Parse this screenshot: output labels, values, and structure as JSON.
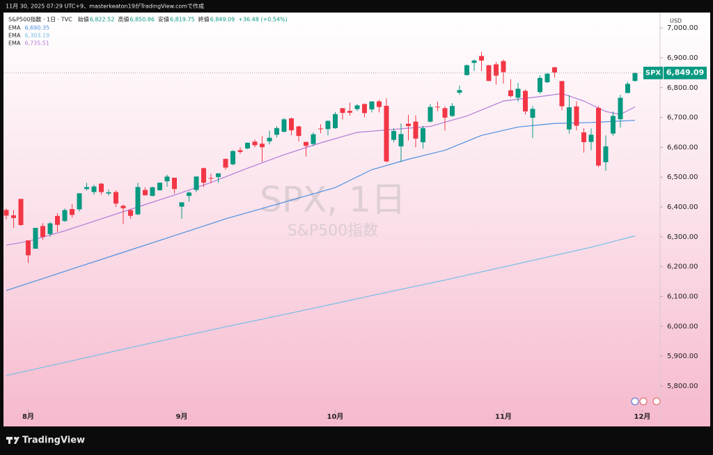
{
  "chart_data": {
    "type": "candlestick",
    "caption": "11月 30, 2025 07:29 UTC+9、masterkeaton19がTradingView.comで作成",
    "title": "S&P500指数 · 1日 · TVC",
    "ohlc_labels": [
      {
        "label": "始値",
        "value": "6,822.52"
      },
      {
        "label": "高値",
        "value": "6,850.86"
      },
      {
        "label": "安値",
        "value": "6,819.75"
      },
      {
        "label": "終値",
        "value": "6,849.09"
      }
    ],
    "change": "+36.48 (+0.54%)",
    "currency": "USD",
    "watermark": {
      "symbol": "SPX, 1日",
      "name": "S&P500指数"
    },
    "brand": "TradingView",
    "xlim": [
      -0.38,
      89.43
    ],
    "xticks": [
      {
        "value": 3,
        "label": "8月"
      },
      {
        "value": 24,
        "label": "9月"
      },
      {
        "value": 45,
        "label": "10月"
      },
      {
        "value": 68,
        "label": "11月"
      },
      {
        "value": 87,
        "label": "12月"
      }
    ],
    "ylim": [
      5669,
      7047
    ],
    "yticks": [
      {
        "value": 5800,
        "label": "5,800.00"
      },
      {
        "value": 5900,
        "label": "5,900.00"
      },
      {
        "value": 6000,
        "label": "6,000.00"
      },
      {
        "value": 6100,
        "label": "6,100.00"
      },
      {
        "value": 6200,
        "label": "6,200.00"
      },
      {
        "value": 6300,
        "label": "6,300.00"
      },
      {
        "value": 6400,
        "label": "6,400.00"
      },
      {
        "value": 6500,
        "label": "6,500.00"
      },
      {
        "value": 6600,
        "label": "6,600.00"
      },
      {
        "value": 6700,
        "label": "6,700.00"
      },
      {
        "value": 6800,
        "label": "6,800.00"
      },
      {
        "value": 6900,
        "label": "6,900.00"
      },
      {
        "value": 7000,
        "label": "7,000.00"
      }
    ],
    "series": [
      {
        "name": "SPX",
        "type": "candlestick",
        "up_color": "#089981",
        "down_color": "#f23645",
        "last_label": "6,849.09",
        "open": [
          6390,
          6372,
          6427,
          6288,
          6260,
          6336,
          6309,
          6370,
          6353,
          6393,
          6392,
          6460,
          6450,
          6478,
          6445,
          6450,
          6404,
          6389,
          6375,
          6457,
          6437,
          6456,
          6486,
          6498,
          6401,
          6437,
          6457,
          6530,
          6497,
          6500,
          6561,
          6543,
          6590,
          6596,
          6619,
          6612,
          6620,
          6642,
          6652,
          6697,
          6670,
          6618,
          6611,
          6663,
          6661,
          6664,
          6731,
          6722,
          6728,
          6745,
          6727,
          6754,
          6739,
          6625,
          6603,
          6679,
          6686,
          6617,
          6686,
          6736,
          6731,
          6705,
          6783,
          6842,
          6883,
          6906,
          6875,
          6878,
          6889,
          6791,
          6766,
          6789,
          6699,
          6785,
          6818,
          6868,
          6822,
          6660,
          6737,
          6650,
          6618,
          6732,
          6550,
          6646,
          6694,
          6782,
          6822.52
        ],
        "high": [
          6395,
          6390,
          6427,
          6288,
          6330,
          6346,
          6350,
          6379,
          6395,
          6410,
          6446,
          6481,
          6474,
          6481,
          6458,
          6456,
          6408,
          6393,
          6481,
          6466,
          6468,
          6482,
          6508,
          6498,
          6416,
          6452,
          6502,
          6532,
          6511,
          6513,
          6563,
          6590,
          6600,
          6616,
          6626,
          6638,
          6656,
          6671,
          6698,
          6699,
          6672,
          6618,
          6650,
          6677,
          6690,
          6718,
          6731,
          6750,
          6745,
          6747,
          6754,
          6759,
          6764,
          6664,
          6680,
          6709,
          6707,
          6672,
          6745,
          6753,
          6738,
          6748,
          6807,
          6877,
          6895,
          6920,
          6876,
          6886,
          6894,
          6828,
          6816,
          6794,
          6738,
          6841,
          6850,
          6870,
          6822,
          6775,
          6754,
          6664,
          6663,
          6738,
          6640,
          6720,
          6776,
          6819,
          6850.86
        ],
        "low": [
          6358,
          6330,
          6337,
          6212,
          6260,
          6289,
          6300,
          6316,
          6350,
          6364,
          6385,
          6455,
          6441,
          6441,
          6438,
          6400,
          6343,
          6360,
          6373,
          6438,
          6436,
          6455,
          6468,
          6445,
          6360,
          6418,
          6450,
          6467,
          6480,
          6481,
          6525,
          6540,
          6578,
          6594,
          6600,
          6551,
          6610,
          6633,
          6650,
          6641,
          6620,
          6569,
          6604,
          6647,
          6640,
          6662,
          6693,
          6706,
          6721,
          6700,
          6717,
          6717,
          6550,
          6617,
          6551,
          6623,
          6600,
          6596,
          6683,
          6721,
          6656,
          6702,
          6776,
          6841,
          6856,
          6855,
          6822,
          6810,
          6813,
          6767,
          6753,
          6710,
          6631,
          6779,
          6815,
          6834,
          6724,
          6646,
          6657,
          6582,
          6590,
          6533,
          6521,
          6638,
          6666,
          6781,
          6819.75
        ],
        "close": [
          6370.86,
          6362.9,
          6339.39,
          6238.01,
          6329.94,
          6299.19,
          6345.06,
          6340.0,
          6389.45,
          6373.45,
          6445.76,
          6466.58,
          6468.54,
          6449.8,
          6449.15,
          6411.37,
          6395.78,
          6370.17,
          6466.91,
          6439.32,
          6465.94,
          6481.4,
          6501.86,
          6460.26,
          6415.54,
          6448.26,
          6502.08,
          6481.5,
          6495.15,
          6512.61,
          6532.04,
          6587.47,
          6584.29,
          6615.28,
          6606.76,
          6600.35,
          6631.96,
          6664.36,
          6693.75,
          6656.92,
          6637.97,
          6604.72,
          6643.7,
          6661.21,
          6688.46,
          6711.2,
          6715.35,
          6715.79,
          6740.28,
          6714.59,
          6753.72,
          6735.11,
          6552.51,
          6654.72,
          6644.31,
          6671.06,
          6629.07,
          6664.01,
          6735.13,
          6735.35,
          6699.4,
          6738.44,
          6791.69,
          6875.16,
          6890.89,
          6890.59,
          6822.34,
          6840.2,
          6851.97,
          6771.55,
          6796.29,
          6720.32,
          6728.8,
          6832.43,
          6846.61,
          6850.92,
          6737.49,
          6734.11,
          6672.41,
          6617.32,
          6642.16,
          6538.76,
          6602.99,
          6705.12,
          6765.88,
          6812.61,
          6849.09
        ]
      },
      {
        "name": "EMA",
        "type": "line",
        "color": "#4a8fe0",
        "last_label": "6,690.35",
        "x": [
          0,
          5,
          10,
          15,
          20,
          25,
          30,
          35,
          40,
          45,
          50,
          55,
          60,
          65,
          70,
          75,
          80,
          86
        ],
        "values": [
          6120,
          6160,
          6200,
          6240,
          6280,
          6320,
          6360,
          6395,
          6430,
          6465,
          6525,
          6560,
          6590,
          6640,
          6668,
          6680,
          6683,
          6690.35
        ]
      },
      {
        "name": "EMA",
        "type": "line",
        "color": "#74bde6",
        "last_label": "6,303.19",
        "x": [
          0,
          10,
          20,
          30,
          40,
          50,
          60,
          70,
          80,
          86
        ],
        "values": [
          5835,
          5890,
          5945,
          5998,
          6050,
          6103,
          6155,
          6210,
          6265,
          6303.19
        ]
      },
      {
        "name": "EMA",
        "type": "line",
        "color": "#b27ad8",
        "last_label": "6,735.51",
        "x": [
          0,
          3,
          8,
          13,
          18,
          23,
          28,
          33,
          38,
          43,
          48,
          53,
          58,
          63,
          68,
          73,
          76,
          79,
          82,
          84,
          86
        ],
        "values": [
          6272,
          6285,
          6320,
          6360,
          6400,
          6440,
          6482,
          6530,
          6575,
          6615,
          6650,
          6660,
          6670,
          6705,
          6755,
          6770,
          6780,
          6755,
          6720,
          6710,
          6735.51
        ]
      }
    ]
  }
}
